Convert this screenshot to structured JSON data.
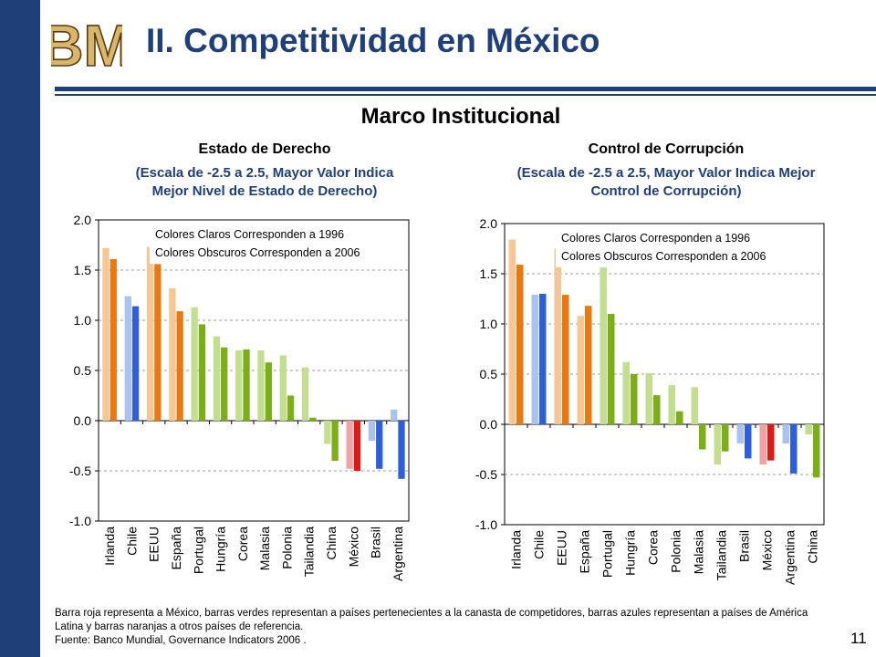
{
  "title": "II. Competitividad en México",
  "subtitle": "Marco Institucional",
  "page_number": "11",
  "logo_text": "BM",
  "charts": [
    {
      "title": "Estado de Derecho",
      "sub1": "(Escala de -2.5 a 2.5, Mayor Valor Indica",
      "sub2": "Mejor Nivel de Estado de Derecho)"
    },
    {
      "title": "Control de Corrupción",
      "sub1": "(Escala de -2.5 a 2.5, Mayor Valor Indica Mejor",
      "sub2": "Control de Corrupción)"
    }
  ],
  "colors": {
    "orange": [
      "#f6c695",
      "#e8780f"
    ],
    "blue": [
      "#a9c2ee",
      "#2f5fd8"
    ],
    "green": [
      "#c2de8f",
      "#7cae17"
    ],
    "red": [
      "#f1a3a3",
      "#e01818"
    ],
    "navy": "#1f3f79"
  },
  "chart_data": [
    {
      "type": "bar",
      "title": "Estado de Derecho",
      "ylim": [
        -1.0,
        2.0
      ],
      "yticks": [
        "2.0",
        "1.5",
        "1.0",
        "0.5",
        "0.0",
        "-0.5",
        "-1.0"
      ],
      "legend": [
        "Colores Claros Corresponden a 1996",
        "Colores Obscuros Corresponden a 2006"
      ],
      "grid": true,
      "categories": [
        "Irlanda",
        "Chile",
        "EEUU",
        "España",
        "Portugal",
        "Hungría",
        "Corea",
        "Malasia",
        "Polonia",
        "Tailandia",
        "China",
        "México",
        "Brasil",
        "Argentina"
      ],
      "group": [
        "orange",
        "blue",
        "orange",
        "orange",
        "green",
        "green",
        "green",
        "green",
        "green",
        "green",
        "green",
        "red",
        "blue",
        "blue"
      ],
      "series": [
        {
          "values": [
            1.72,
            1.24,
            1.73,
            1.32,
            1.13,
            0.84,
            0.7,
            0.7,
            0.65,
            0.53,
            -0.23,
            -0.48,
            -0.2,
            0.11
          ]
        },
        {
          "values": [
            1.61,
            1.14,
            1.56,
            1.09,
            0.96,
            0.73,
            0.71,
            0.58,
            0.25,
            0.03,
            -0.4,
            -0.5,
            -0.48,
            -0.58
          ]
        }
      ]
    },
    {
      "type": "bar",
      "title": "Control de Corrupción",
      "ylim": [
        -1.0,
        2.0
      ],
      "yticks": [
        "2.0",
        "1.5",
        "1.0",
        "0.5",
        "0.0",
        "-0.5",
        "-1.0"
      ],
      "legend": [
        "Colores Claros Corresponden a 1996",
        "Colores Obscuros Corresponden a 2006"
      ],
      "grid": true,
      "categories": [
        "Irlanda",
        "Chile",
        "EEUU",
        "España",
        "Portugal",
        "Hungría",
        "Corea",
        "Polonia",
        "Malasia",
        "Tailandia",
        "Brasil",
        "México",
        "Argentina",
        "China"
      ],
      "group": [
        "orange",
        "blue",
        "orange",
        "orange",
        "green",
        "green",
        "green",
        "green",
        "green",
        "green",
        "blue",
        "red",
        "blue",
        "green"
      ],
      "series": [
        {
          "values": [
            1.84,
            1.29,
            1.75,
            1.08,
            1.57,
            0.62,
            0.51,
            0.39,
            0.37,
            -0.4,
            -0.19,
            -0.4,
            -0.19,
            -0.1
          ]
        },
        {
          "values": [
            1.59,
            1.3,
            1.29,
            1.18,
            1.1,
            0.5,
            0.29,
            0.13,
            -0.25,
            -0.27,
            -0.34,
            -0.36,
            -0.49,
            -0.53
          ]
        }
      ]
    }
  ],
  "footnote": {
    "line1": "Barra roja representa a México, barras verdes representan a países pertenecientes a la canasta de competidores, barras azules representan a países de América Latina y barras naranjas a otros países de referencia.",
    "line2": "Fuente: Banco Mundial, Governance Indicators 2006 ."
  }
}
